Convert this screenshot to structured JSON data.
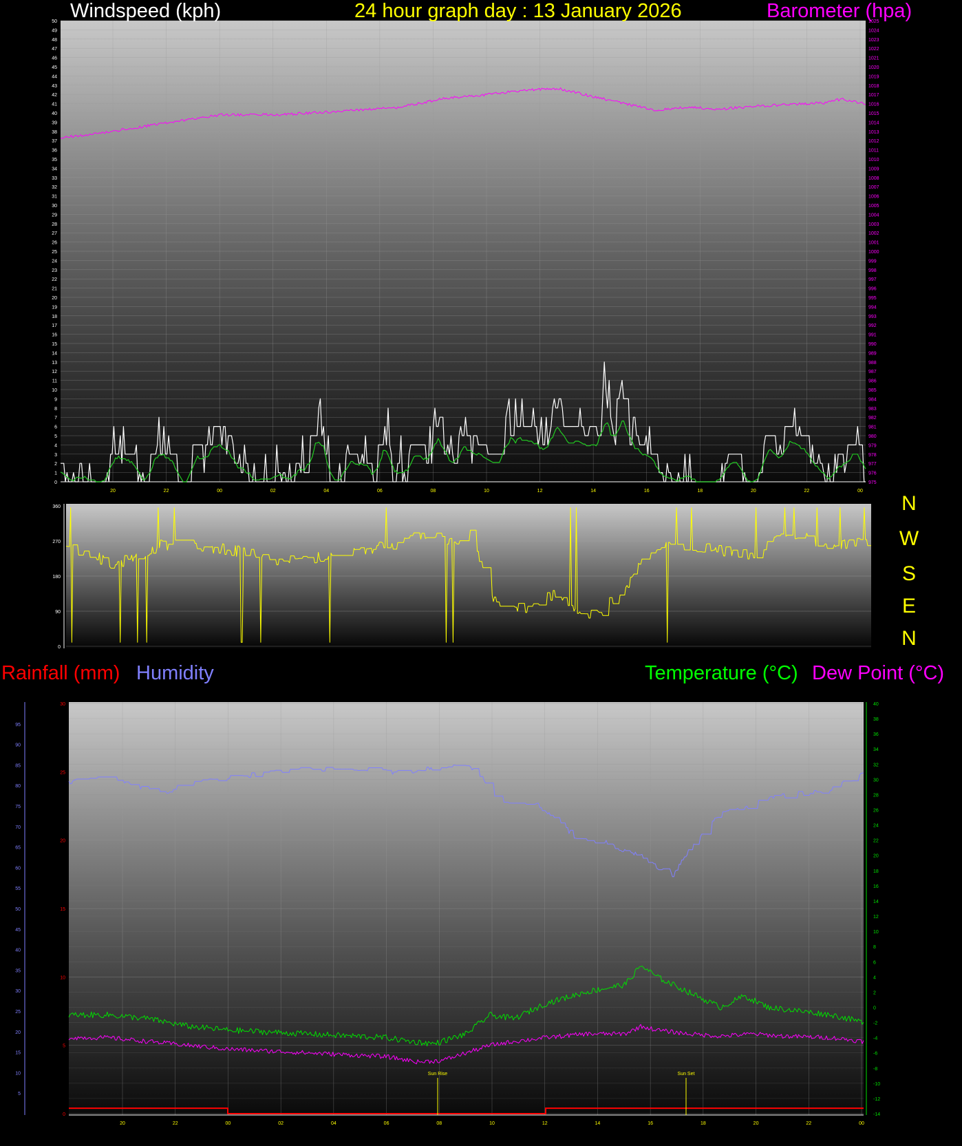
{
  "titles": {
    "windspeed": "Windspeed (kph)",
    "graph_day": "24 hour graph day : 13 January 2026",
    "barometer": "Barometer (hpa)",
    "rainfall": "Rainfall (mm)",
    "humidity": "Humidity",
    "temperature": "Temperature (°C)",
    "dew_point": "Dew Point (°C)"
  },
  "direction_labels": [
    "N",
    "W",
    "S",
    "E",
    "N"
  ],
  "sun_labels": {
    "rise": "Sun Rise",
    "set": "Sun Set"
  },
  "colors": {
    "windspeed": "#ffffff",
    "windgust": "#d8d8d8",
    "windavg": "#22cc22",
    "barometer": "#ff00ff",
    "direction": "#ffff00",
    "rain": "#ff0000",
    "humidity": "#8080ff",
    "temperature": "#00e000",
    "dewpoint": "#ff00ff",
    "title_yellow": "#ffff00",
    "title_magenta": "#ff00ff",
    "title_red": "#ff0000",
    "title_blue": "#8080ff",
    "title_green": "#00ff00",
    "title_white": "#ffffff"
  },
  "chart_data": [
    {
      "id": "wind",
      "type": "line",
      "xlabel": "",
      "x_ticks": [
        "20",
        "22",
        "00",
        "02",
        "04",
        "06",
        "08",
        "10",
        "12",
        "14",
        "16",
        "18",
        "20",
        "22",
        "00"
      ],
      "left_axis": {
        "label": "Windspeed (kph)",
        "min": 0,
        "max": 50,
        "step": 1
      },
      "right_axis": {
        "label": "Barometer (hpa)",
        "min": 975,
        "max": 1025,
        "step": 1
      },
      "series": [
        {
          "name": "Windspeed (kph)",
          "axis": "left",
          "keyframes": [
            [
              0,
              0
            ],
            [
              0.05,
              0
            ],
            [
              0.09,
              4
            ],
            [
              0.1,
              0
            ],
            [
              0.13,
              3
            ],
            [
              0.15,
              0
            ],
            [
              0.2,
              5
            ],
            [
              0.22,
              0
            ],
            [
              0.28,
              0
            ],
            [
              0.32,
              4
            ],
            [
              0.34,
              0
            ],
            [
              0.4,
              3
            ],
            [
              0.42,
              0
            ],
            [
              0.47,
              5
            ],
            [
              0.5,
              3
            ],
            [
              0.55,
              6
            ],
            [
              0.58,
              9
            ],
            [
              0.6,
              5
            ],
            [
              0.63,
              8
            ],
            [
              0.65,
              5
            ],
            [
              0.68,
              8
            ],
            [
              0.71,
              4
            ],
            [
              0.74,
              3
            ],
            [
              0.78,
              0
            ],
            [
              0.82,
              3
            ],
            [
              0.85,
              0
            ],
            [
              0.87,
              3
            ],
            [
              0.9,
              5
            ],
            [
              0.93,
              2
            ],
            [
              0.96,
              0
            ],
            [
              0.98,
              3
            ],
            [
              1,
              0
            ]
          ]
        },
        {
          "name": "Barometer (hpa)",
          "axis": "right",
          "keyframes": [
            [
              0,
              1012.3
            ],
            [
              0.05,
              1012.8
            ],
            [
              0.1,
              1013.5
            ],
            [
              0.2,
              1014.8
            ],
            [
              0.27,
              1014.8
            ],
            [
              0.35,
              1015.2
            ],
            [
              0.42,
              1015.6
            ],
            [
              0.48,
              1016.6
            ],
            [
              0.52,
              1016.9
            ],
            [
              0.58,
              1017.5
            ],
            [
              0.62,
              1017.6
            ],
            [
              0.66,
              1016.8
            ],
            [
              0.7,
              1016.0
            ],
            [
              0.74,
              1015.3
            ],
            [
              0.78,
              1015.6
            ],
            [
              0.82,
              1015.4
            ],
            [
              0.86,
              1015.7
            ],
            [
              0.9,
              1015.9
            ],
            [
              0.95,
              1016.1
            ],
            [
              0.97,
              1016.5
            ],
            [
              1,
              1016.0
            ]
          ]
        }
      ]
    },
    {
      "id": "direction",
      "type": "line",
      "y_ticks": [
        0,
        90,
        180,
        270,
        360
      ],
      "series": [
        {
          "name": "Wind direction",
          "keyframes": [
            [
              0,
              260
            ],
            [
              0.06,
              210
            ],
            [
              0.12,
              260
            ],
            [
              0.2,
              250
            ],
            [
              0.26,
              220
            ],
            [
              0.32,
              230
            ],
            [
              0.4,
              260
            ],
            [
              0.45,
              290
            ],
            [
              0.48,
              260
            ],
            [
              0.5,
              310
            ],
            [
              0.53,
              120
            ],
            [
              0.57,
              90
            ],
            [
              0.61,
              140
            ],
            [
              0.64,
              90
            ],
            [
              0.66,
              80
            ],
            [
              0.69,
              140
            ],
            [
              0.72,
              230
            ],
            [
              0.75,
              260
            ],
            [
              0.8,
              250
            ],
            [
              0.85,
              230
            ],
            [
              0.9,
              290
            ],
            [
              0.95,
              260
            ],
            [
              1,
              270
            ]
          ]
        }
      ]
    },
    {
      "id": "temperature",
      "type": "line",
      "x_ticks": [
        "20",
        "22",
        "00",
        "02",
        "04",
        "06",
        "08",
        "10",
        "12",
        "14",
        "16",
        "18",
        "20",
        "22",
        "00"
      ],
      "rain_axis": {
        "label": "Rainfall (mm)",
        "ticks": [
          0,
          5,
          10,
          15,
          20,
          25,
          30
        ]
      },
      "humidity_axis": {
        "label": "Humidity",
        "ticks": [
          5,
          10,
          15,
          20,
          25,
          30,
          35,
          40,
          45,
          50,
          55,
          60,
          65,
          70,
          75,
          80,
          85,
          90,
          95
        ]
      },
      "temp_axis": {
        "label": "Temperature (°C)",
        "ticks": [
          -14,
          -12,
          -10,
          -8,
          -6,
          -4,
          -2,
          0,
          2,
          4,
          6,
          8,
          10,
          12,
          14,
          16,
          18,
          20,
          22,
          24,
          26,
          28,
          30,
          32,
          34,
          36,
          38,
          40
        ]
      },
      "series": [
        {
          "name": "Humidity",
          "keyframes": [
            [
              0,
              81
            ],
            [
              0.05,
              82
            ],
            [
              0.12,
              78
            ],
            [
              0.14,
              80
            ],
            [
              0.2,
              82
            ],
            [
              0.3,
              84
            ],
            [
              0.35,
              84
            ],
            [
              0.38,
              84
            ],
            [
              0.42,
              83
            ],
            [
              0.48,
              85
            ],
            [
              0.5,
              85
            ],
            [
              0.52,
              82
            ],
            [
              0.54,
              76
            ],
            [
              0.58,
              76
            ],
            [
              0.6,
              74
            ],
            [
              0.64,
              67
            ],
            [
              0.68,
              66
            ],
            [
              0.7,
              64
            ],
            [
              0.72,
              63
            ],
            [
              0.74,
              60
            ],
            [
              0.76,
              58
            ],
            [
              0.78,
              64
            ],
            [
              0.8,
              69
            ],
            [
              0.82,
              73
            ],
            [
              0.86,
              75
            ],
            [
              0.88,
              77
            ],
            [
              0.92,
              78
            ],
            [
              0.96,
              79
            ],
            [
              1,
              83
            ]
          ]
        },
        {
          "name": "Temperature (°C)",
          "keyframes": [
            [
              0,
              -1
            ],
            [
              0.05,
              -1
            ],
            [
              0.1,
              -1.5
            ],
            [
              0.15,
              -2.5
            ],
            [
              0.2,
              -3
            ],
            [
              0.3,
              -3.5
            ],
            [
              0.4,
              -4
            ],
            [
              0.43,
              -4.5
            ],
            [
              0.46,
              -4.8
            ],
            [
              0.5,
              -3.5
            ],
            [
              0.53,
              -1
            ],
            [
              0.56,
              -1.5
            ],
            [
              0.6,
              0.5
            ],
            [
              0.65,
              2
            ],
            [
              0.7,
              3
            ],
            [
              0.72,
              5.5
            ],
            [
              0.74,
              4
            ],
            [
              0.78,
              2
            ],
            [
              0.8,
              1
            ],
            [
              0.82,
              0
            ],
            [
              0.85,
              1.5
            ],
            [
              0.88,
              0
            ],
            [
              0.92,
              -0.5
            ],
            [
              0.96,
              -1
            ],
            [
              1,
              -2
            ]
          ]
        },
        {
          "name": "Dew Point (°C)",
          "keyframes": [
            [
              0,
              -4
            ],
            [
              0.05,
              -4
            ],
            [
              0.1,
              -4.5
            ],
            [
              0.15,
              -5
            ],
            [
              0.2,
              -5.5
            ],
            [
              0.3,
              -6
            ],
            [
              0.4,
              -6.5
            ],
            [
              0.44,
              -7.2
            ],
            [
              0.47,
              -7
            ],
            [
              0.5,
              -6
            ],
            [
              0.53,
              -5
            ],
            [
              0.56,
              -4.5
            ],
            [
              0.6,
              -4
            ],
            [
              0.65,
              -3.5
            ],
            [
              0.7,
              -3.5
            ],
            [
              0.72,
              -2.5
            ],
            [
              0.74,
              -3
            ],
            [
              0.78,
              -3.5
            ],
            [
              0.82,
              -3.8
            ],
            [
              0.86,
              -3.5
            ],
            [
              0.9,
              -3.8
            ],
            [
              0.96,
              -4
            ],
            [
              1,
              -4.5
            ]
          ]
        },
        {
          "name": "Rainfall (mm)",
          "keyframes": [
            [
              0,
              0.4
            ],
            [
              0.2,
              0.4
            ],
            [
              0.2,
              0
            ],
            [
              0.6,
              0
            ],
            [
              0.6,
              0.4
            ],
            [
              1,
              0.4
            ]
          ]
        }
      ]
    }
  ]
}
